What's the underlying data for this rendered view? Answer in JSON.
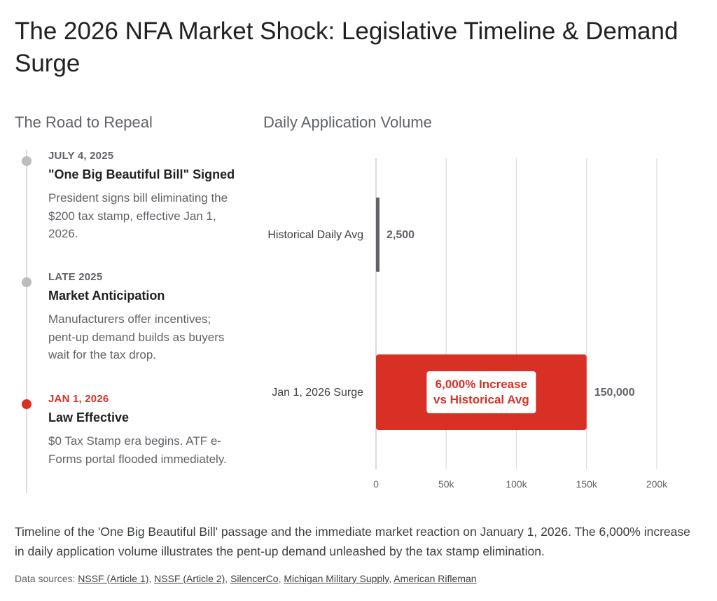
{
  "title": "The 2026 NFA Market Shock: Legislative Timeline & Demand Surge",
  "timeline": {
    "heading": "The Road to Repeal",
    "events": [
      {
        "date": "JULY 4, 2025",
        "headline": "\"One Big Beautiful Bill\" Signed",
        "description": "President signs bill eliminating the $200 tax stamp, effective Jan 1, 2026.",
        "active": false
      },
      {
        "date": "LATE 2025",
        "headline": "Market Anticipation",
        "description": "Manufacturers offer incentives; pent-up demand builds as buyers wait for the tax drop.",
        "active": false
      },
      {
        "date": "JAN 1, 2026",
        "headline": "Law Effective",
        "description": "$0 Tax Stamp era begins. ATF e-Forms portal flooded immediately.",
        "active": true
      }
    ]
  },
  "chart_data": {
    "type": "bar",
    "orientation": "horizontal",
    "title": "Daily Application Volume",
    "categories": [
      "Historical Daily Avg",
      "Jan 1, 2026 Surge"
    ],
    "values": [
      2500,
      150000
    ],
    "value_labels": [
      "2,500",
      "150,000"
    ],
    "bar_colors": [
      "#5f6368",
      "#d93025"
    ],
    "xlim": [
      0,
      200000
    ],
    "xticks": [
      0,
      50000,
      100000,
      150000,
      200000
    ],
    "xtick_labels": [
      "0",
      "50k",
      "100k",
      "150k",
      "200k"
    ],
    "grid": true,
    "annotation": {
      "category": "Jan 1, 2026 Surge",
      "lines": [
        "6,000% Increase",
        "vs Historical Avg"
      ]
    }
  },
  "caption": "Timeline of the 'One Big Beautiful Bill' passage and the immediate market reaction on January 1, 2026. The 6,000% increase in daily application volume illustrates the pent-up demand unleashed by the tax stamp elimination.",
  "sources": {
    "label": "Data sources:",
    "links": [
      "NSSF (Article 1)",
      "NSSF (Article 2)",
      "SilencerCo",
      "Michigan Military Supply",
      "American Rifleman"
    ]
  },
  "colors": {
    "accent": "#d93025",
    "muted_dot": "#bdbdbd",
    "text_muted": "#5f6368"
  }
}
